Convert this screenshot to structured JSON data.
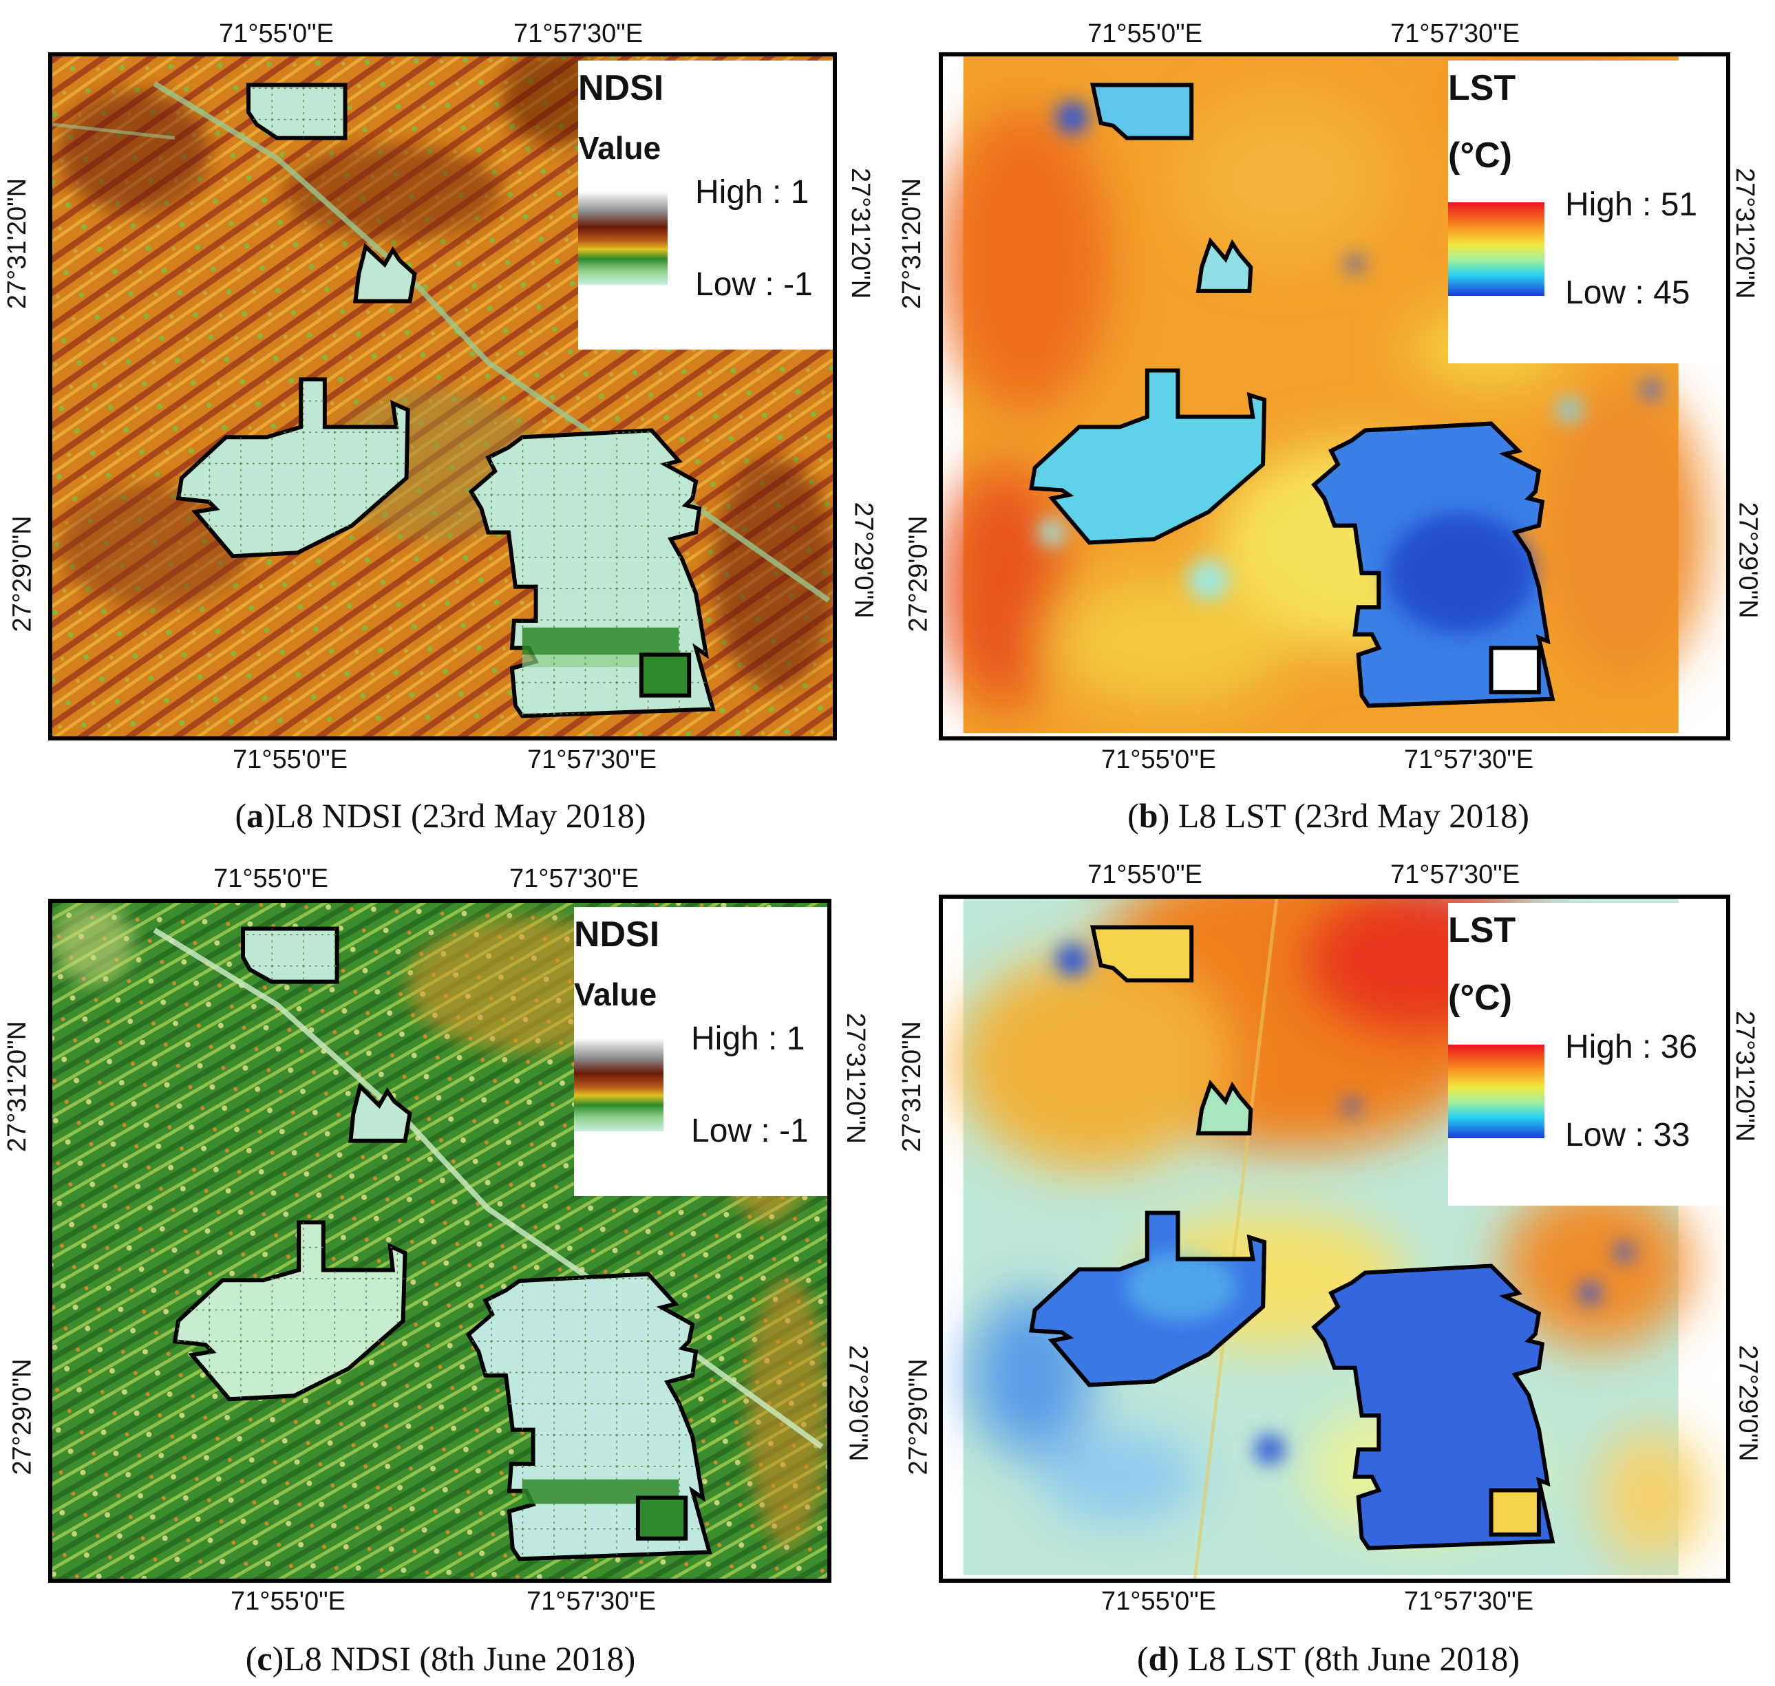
{
  "coords": {
    "lon_left": "71°55'0\"E",
    "lon_right": "71°57'30\"E",
    "lat_upper": "27°31'20\"N",
    "lat_lower": "27°29'0\"N"
  },
  "panels": [
    {
      "id": "a",
      "legend_title": "NDSI",
      "legend_sub": "Value",
      "high": "High : 1",
      "low": "Low : -1",
      "caption_letter": "a",
      "caption_prefix": "(",
      "caption_text": ")L8 NDSI (23rd May 2018)"
    },
    {
      "id": "b",
      "legend_title": "LST",
      "legend_sub": "(°C)",
      "high": "High : 51",
      "low": "Low : 45",
      "caption_letter": "b",
      "caption_prefix": "(",
      "caption_text": ") L8 LST (23rd May 2018)"
    },
    {
      "id": "c",
      "legend_title": "NDSI",
      "legend_sub": "Value",
      "high": "High : 1",
      "low": "Low : -1",
      "caption_letter": "c",
      "caption_prefix": "(",
      "caption_text": ")L8 NDSI (8th June 2018)"
    },
    {
      "id": "d",
      "legend_title": "LST",
      "legend_sub": "(°C)",
      "high": "High : 36",
      "low": "Low : 33",
      "caption_letter": "d",
      "caption_prefix": "(",
      "caption_text": ") L8 LST (8th June 2018)"
    }
  ],
  "colors": {
    "ndsi_dry": "#d98a1e",
    "ndsi_dark": "#7a2a0a",
    "ndsi_green": "#3e8f2a",
    "ndsi_field": "#bfe8d4",
    "lst_hot": "#f08a1e",
    "lst_warm": "#f4c734",
    "lst_cool": "#7fd6f0",
    "lst_cold": "#2a55d8",
    "border": "#000000"
  }
}
